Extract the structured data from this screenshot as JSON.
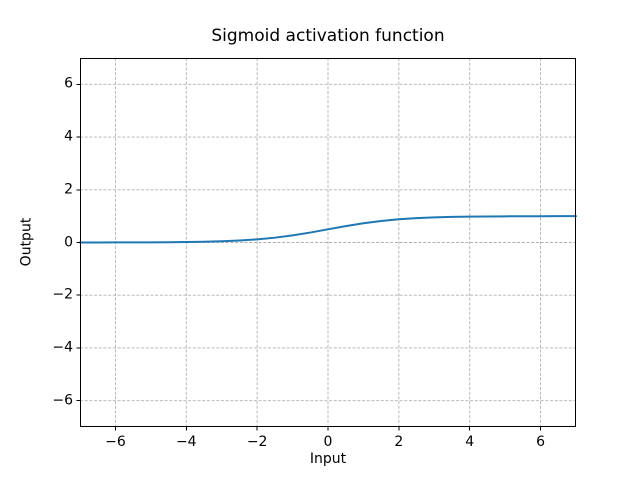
{
  "figure": {
    "background": "#ffffff"
  },
  "chart_data": {
    "type": "line",
    "title": "Sigmoid activation function",
    "xlabel": "Input",
    "ylabel": "Output",
    "xlim": [
      -7,
      7
    ],
    "ylim": [
      -7,
      7
    ],
    "grid": true,
    "grid_linestyle": "dashed",
    "legend_position": "none",
    "xticks": {
      "values": [
        -6,
        -4,
        -2,
        0,
        2,
        4,
        6
      ],
      "labels": [
        "−6",
        "−4",
        "−2",
        "0",
        "2",
        "4",
        "6"
      ]
    },
    "yticks": {
      "values": [
        -6,
        -4,
        -2,
        0,
        2,
        4,
        6
      ],
      "labels": [
        "−6",
        "−4",
        "−2",
        "0",
        "2",
        "4",
        "6"
      ]
    },
    "series": [
      {
        "name": "sigmoid",
        "color": "#1f77b4",
        "x": [
          -7,
          -6.5,
          -6,
          -5.5,
          -5,
          -4.5,
          -4,
          -3.5,
          -3,
          -2.5,
          -2,
          -1.5,
          -1,
          -0.5,
          0,
          0.5,
          1,
          1.5,
          2,
          2.5,
          3,
          3.5,
          4,
          4.5,
          5,
          5.5,
          6,
          6.5,
          7
        ],
        "y": [
          0.0009,
          0.0015,
          0.0025,
          0.0041,
          0.0067,
          0.0111,
          0.018,
          0.0293,
          0.0474,
          0.0759,
          0.1192,
          0.1824,
          0.2689,
          0.3775,
          0.5,
          0.6225,
          0.7311,
          0.8176,
          0.8808,
          0.9241,
          0.9526,
          0.9707,
          0.982,
          0.9889,
          0.9933,
          0.9959,
          0.9975,
          0.9985,
          0.9991
        ]
      }
    ]
  },
  "colors": {
    "line": "#1f77b4",
    "grid": "#b0b0b0",
    "spine": "#000000",
    "text": "#000000"
  }
}
